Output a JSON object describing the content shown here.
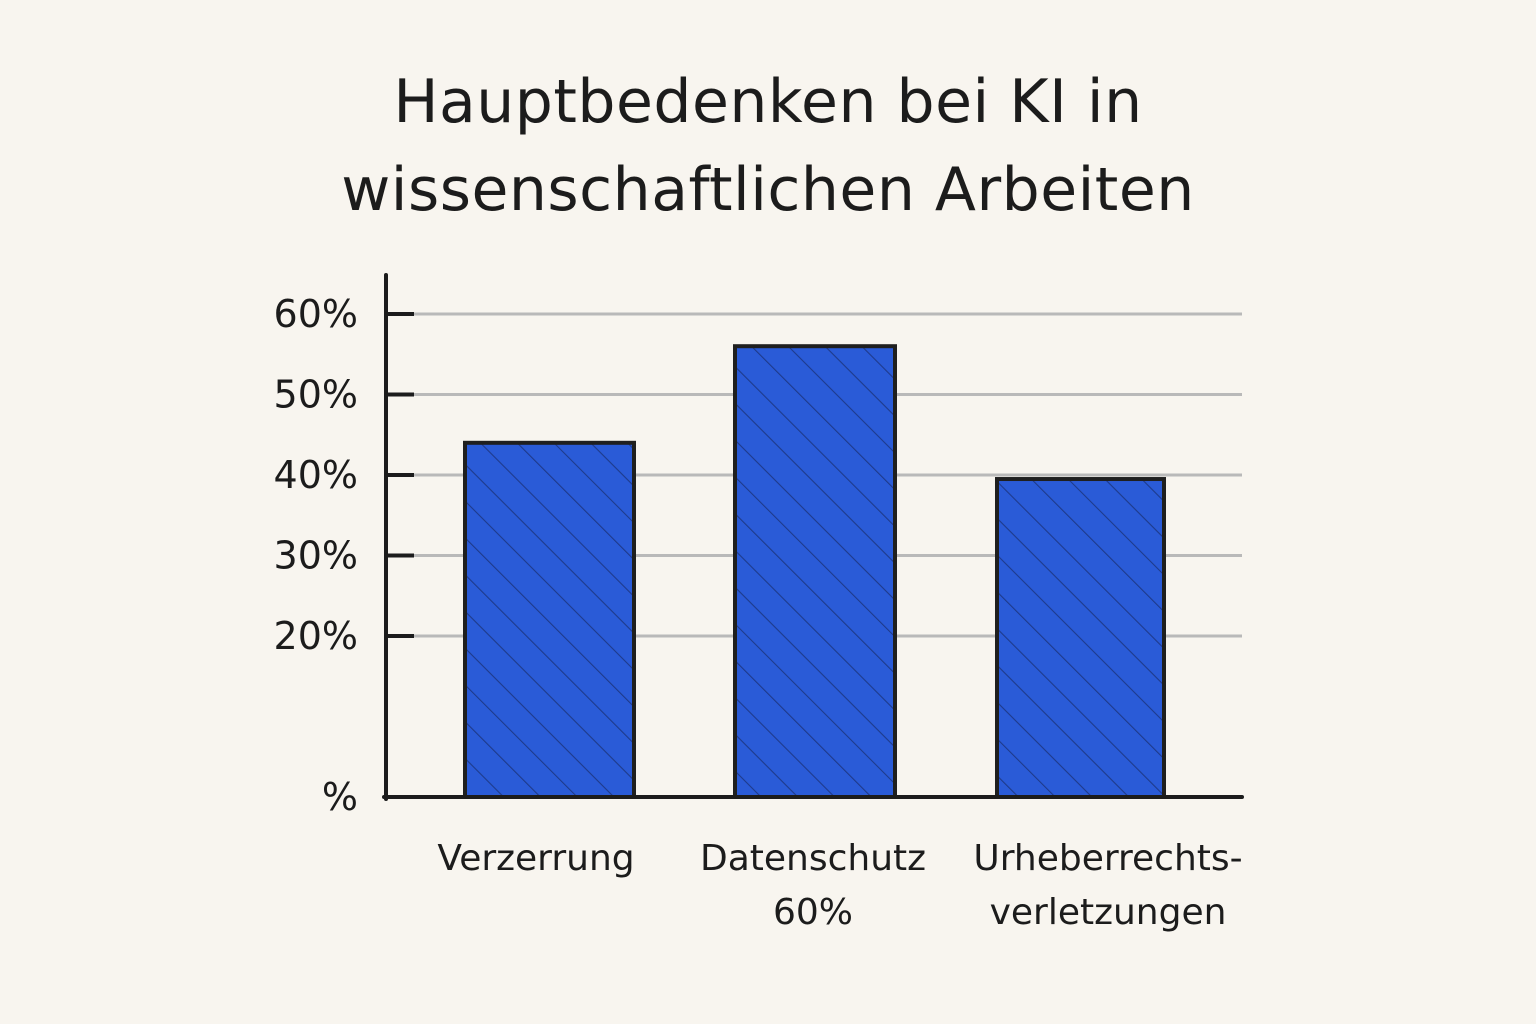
{
  "chart_data": {
    "type": "bar",
    "title_lines": [
      "Hauptbedenken bei KI in",
      "wissenschaftlichen Arbeiten"
    ],
    "categories": [
      {
        "lines": [
          "Verzerrung"
        ]
      },
      {
        "lines": [
          "Datenschutz",
          "60%"
        ]
      },
      {
        "lines": [
          "Urheberrechts-",
          "verletzungen"
        ]
      }
    ],
    "values": [
      44,
      56,
      39.5
    ],
    "unit": "%",
    "ylim": [
      0,
      60
    ],
    "y_ticks": [
      {
        "value": 0,
        "label": "%"
      },
      {
        "value": 20,
        "label": "20%"
      },
      {
        "value": 30,
        "label": "30%"
      },
      {
        "value": 40,
        "label": "40%"
      },
      {
        "value": 50,
        "label": "50%"
      },
      {
        "value": 60,
        "label": "60%"
      }
    ],
    "grid": true,
    "xlabel": "",
    "ylabel": "",
    "colors": {
      "bar_fill": "#2a5bd7",
      "bar_stroke": "#1f1f1f",
      "hatch": "#1e3a8a",
      "grid": "#b9b9b9",
      "axis": "#1c1c1c"
    }
  }
}
